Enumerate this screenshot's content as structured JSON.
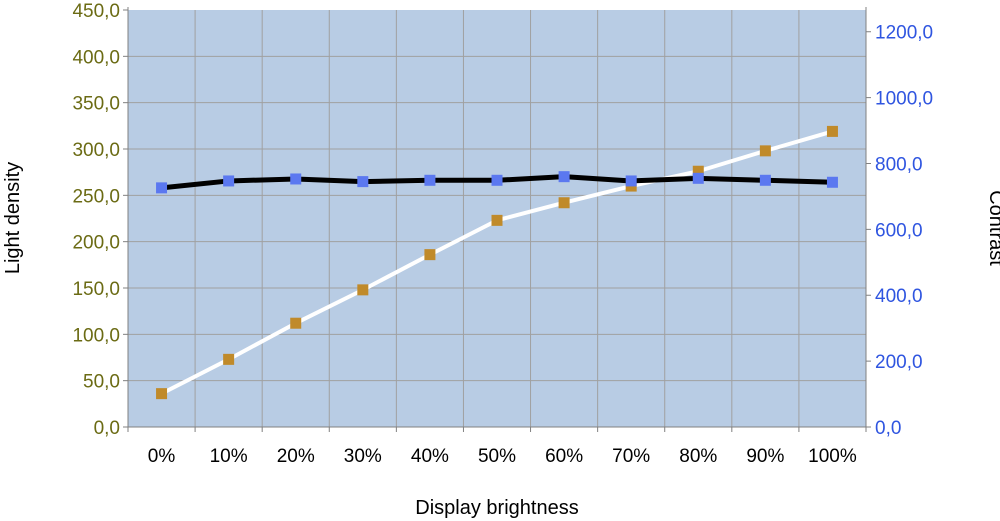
{
  "chart_data": {
    "type": "line",
    "categories": [
      "0%",
      "10%",
      "20%",
      "30%",
      "40%",
      "50%",
      "60%",
      "70%",
      "80%",
      "90%",
      "100%"
    ],
    "xlabel": "Display brightness",
    "ylabel_left": "Light density",
    "ylabel_right": "Contrast",
    "ylim_left": [
      0,
      450
    ],
    "ylim_right": [
      0,
      1266
    ],
    "yticks_left": [
      "0,0",
      "50,0",
      "100,0",
      "150,0",
      "200,0",
      "250,0",
      "300,0",
      "350,0",
      "400,0",
      "450,0"
    ],
    "yticks_right": [
      "0,0",
      "200,0",
      "400,0",
      "600,0",
      "800,0",
      "1000,0",
      "1200,0"
    ],
    "grid": true,
    "plot_background": "#b8cce4",
    "series": [
      {
        "axis": "left",
        "line_color": "#ffffff",
        "marker_color": "#c08a2a",
        "values": [
          36,
          73,
          112,
          148,
          186,
          223,
          242,
          260,
          276,
          298,
          319
        ]
      },
      {
        "axis": "right",
        "line_color": "#000000",
        "marker_color": "#5b78f0",
        "values": [
          726,
          747,
          753,
          745,
          749,
          749,
          760,
          747,
          755,
          749,
          743
        ]
      }
    ]
  }
}
